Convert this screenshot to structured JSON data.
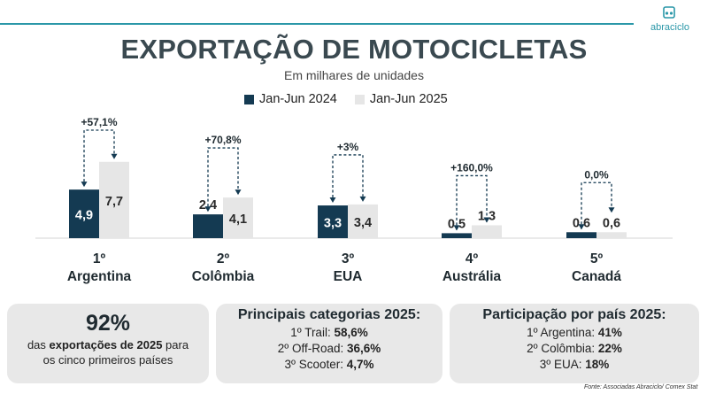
{
  "header": {
    "title": "EXPORTAÇÃO DE MOTOCICLETAS",
    "subtitle": "Em milhares de unidades",
    "logo_text": "abraciclo"
  },
  "colors": {
    "series_2024": "#143a52",
    "series_2025": "#e6e6e6",
    "accent": "#2a97a8"
  },
  "chart_data": {
    "type": "bar",
    "categories": [
      "Argentina",
      "Colômbia",
      "EUA",
      "Austrália",
      "Canadá"
    ],
    "rank_labels": [
      "1º",
      "2º",
      "3º",
      "4º",
      "5º"
    ],
    "series": [
      {
        "name": "Jan-Jun 2024",
        "values": [
          4.9,
          2.4,
          3.3,
          0.5,
          0.6
        ],
        "value_labels": [
          "4,9",
          "2,4",
          "3,3",
          "0,5",
          "0,6"
        ]
      },
      {
        "name": "Jan-Jun 2025",
        "values": [
          7.7,
          4.1,
          3.4,
          1.3,
          0.6
        ],
        "value_labels": [
          "7,7",
          "4,1",
          "3,4",
          "1,3",
          "0,6"
        ]
      }
    ],
    "changes": [
      "+57,1%",
      "+70,8%",
      "+3%",
      "+160,0%",
      "0,0%"
    ],
    "legend_position": "top-center",
    "grid": false
  },
  "boxes": {
    "share": {
      "big": "92%",
      "line1_pre": "das ",
      "line1_bold": "exportações de 2025",
      "line1_post": " para",
      "line2": "os cinco primeiros países"
    },
    "categories": {
      "title": "Principais categorias 2025:",
      "rows": [
        {
          "label": "1º Trail: ",
          "value": "58,6%"
        },
        {
          "label": "2º Off-Road: ",
          "value": "36,6%"
        },
        {
          "label": "3º Scooter: ",
          "value": "4,7%"
        }
      ]
    },
    "countries": {
      "title": "Participação por país 2025:",
      "rows": [
        {
          "label": "1º Argentina: ",
          "value": "41%"
        },
        {
          "label": "2º Colômbia: ",
          "value": "22%"
        },
        {
          "label": "3º EUA: ",
          "value": "18%"
        }
      ]
    }
  },
  "source": "Fonte: Associadas Abraciclo/ Comex Stat"
}
